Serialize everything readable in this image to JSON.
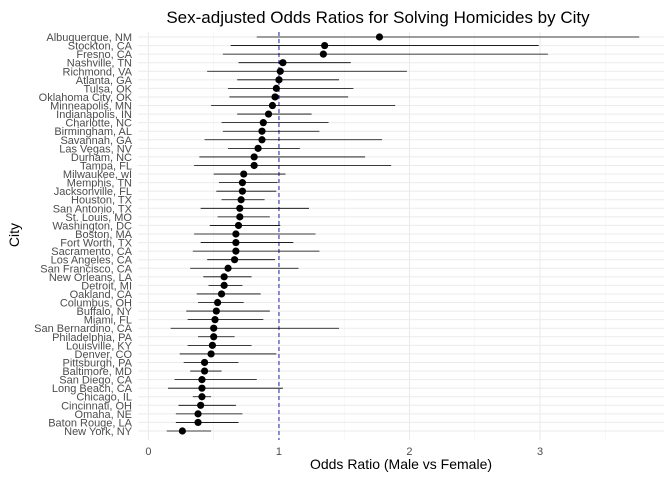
{
  "chart_data": {
    "type": "scatter",
    "title": "Sex-adjusted Odds Ratios for Solving Homicides by City",
    "xlabel": "Odds Ratio (Male vs Female)",
    "ylabel": "City",
    "xlim": [
      -0.08,
      3.95
    ],
    "x_ticks": [
      "0",
      "1",
      "2",
      "3"
    ],
    "grid": true,
    "reference_line": {
      "x": 1,
      "color": "#1f1f9e",
      "style": "dashed"
    },
    "point_color": "#000000",
    "cities": [
      "Albuquerque, NM",
      "Stockton, CA",
      "Fresno, CA",
      "Nashville, TN",
      "Richmond, VA",
      "Atlanta, GA",
      "Tulsa, OK",
      "Oklahoma City, OK",
      "Minneapolis, MN",
      "Indianapolis, IN",
      "Charlotte, NC",
      "Birmingham, AL",
      "Savannah, GA",
      "Las Vegas, NV",
      "Durham, NC",
      "Tampa, FL",
      "Milwaukee, wI",
      "Memphis, TN",
      "Jacksonville, FL",
      "Houston, TX",
      "San Antonio, TX",
      "St. Louis, MO",
      "Washington, DC",
      "Boston, MA",
      "Fort Worth, TX",
      "Sacramento, CA",
      "Los Angeles, CA",
      "San Francisco, CA",
      "New Orleans, LA",
      "Detroit, MI",
      "Oakland, CA",
      "Columbus, OH",
      "Buffalo, NY",
      "Miami, FL",
      "San Bernardino, CA",
      "Philadelphia, PA",
      "Louisville, KY",
      "Denver, CO",
      "Pittsburgh, PA",
      "Baltimore, MD",
      "San Diego, CA",
      "Long Beach, CA",
      "Chicago, IL",
      "Cincinnati, OH",
      "Omaha, NE",
      "Baton Rouge, LA",
      "New York, NY"
    ],
    "or": [
      1.77,
      1.35,
      1.34,
      1.03,
      1.01,
      1.0,
      0.98,
      0.97,
      0.95,
      0.92,
      0.88,
      0.87,
      0.87,
      0.84,
      0.81,
      0.81,
      0.73,
      0.72,
      0.72,
      0.71,
      0.7,
      0.7,
      0.69,
      0.67,
      0.67,
      0.67,
      0.66,
      0.61,
      0.58,
      0.58,
      0.56,
      0.53,
      0.52,
      0.51,
      0.5,
      0.5,
      0.49,
      0.48,
      0.43,
      0.43,
      0.41,
      0.41,
      0.41,
      0.4,
      0.38,
      0.38,
      0.26
    ],
    "ci_low": [
      0.83,
      0.63,
      0.57,
      0.69,
      0.45,
      0.68,
      0.61,
      0.62,
      0.48,
      0.68,
      0.56,
      0.57,
      0.43,
      0.61,
      0.39,
      0.35,
      0.5,
      0.54,
      0.52,
      0.56,
      0.4,
      0.53,
      0.47,
      0.35,
      0.4,
      0.34,
      0.45,
      0.32,
      0.42,
      0.46,
      0.37,
      0.38,
      0.29,
      0.3,
      0.17,
      0.38,
      0.3,
      0.24,
      0.27,
      0.32,
      0.2,
      0.15,
      0.34,
      0.23,
      0.21,
      0.21,
      0.14
    ],
    "ci_high": [
      3.76,
      2.99,
      3.06,
      1.55,
      1.98,
      1.46,
      1.57,
      1.53,
      1.89,
      1.25,
      1.38,
      1.31,
      1.79,
      1.16,
      1.66,
      1.86,
      1.05,
      0.99,
      0.98,
      0.89,
      1.23,
      0.93,
      1.01,
      1.28,
      1.11,
      1.31,
      0.97,
      1.15,
      0.79,
      0.72,
      0.86,
      0.73,
      0.93,
      0.88,
      1.46,
      0.66,
      0.79,
      0.98,
      0.69,
      0.56,
      0.83,
      1.03,
      0.48,
      0.67,
      0.72,
      0.69,
      0.48
    ]
  }
}
